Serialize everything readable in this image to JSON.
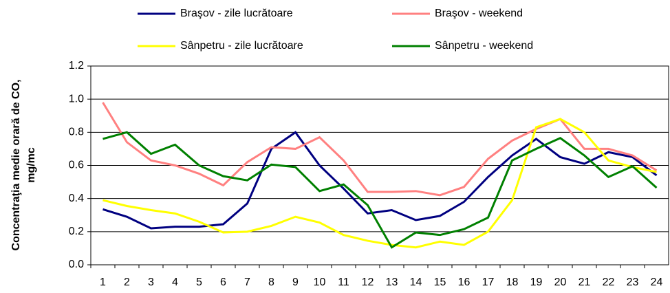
{
  "chart_data": {
    "type": "line",
    "y_label": [
      "Concentraţia medie orară de CO,",
      "mg/mc"
    ],
    "categories": [
      "1",
      "2",
      "3",
      "4",
      "5",
      "6",
      "7",
      "8",
      "9",
      "10",
      "11",
      "12",
      "13",
      "14",
      "15",
      "16",
      "17",
      "18",
      "19",
      "20",
      "21",
      "22",
      "23",
      "24"
    ],
    "series": [
      {
        "name": "Braşov - zile lucrătoare",
        "color": "#000080",
        "values": [
          0.335,
          0.29,
          0.22,
          0.23,
          0.23,
          0.245,
          0.37,
          0.7,
          0.8,
          0.6,
          0.46,
          0.31,
          0.33,
          0.27,
          0.295,
          0.38,
          0.53,
          0.66,
          0.76,
          0.65,
          0.61,
          0.68,
          0.65,
          0.54
        ]
      },
      {
        "name": "Braşov - weekend",
        "color": "#ff8080",
        "values": [
          0.98,
          0.74,
          0.63,
          0.6,
          0.55,
          0.48,
          0.62,
          0.71,
          0.7,
          0.77,
          0.63,
          0.44,
          0.44,
          0.445,
          0.42,
          0.47,
          0.64,
          0.75,
          0.82,
          0.88,
          0.7,
          0.7,
          0.66,
          0.57
        ]
      },
      {
        "name": "Sânpetru - zile lucrătoare",
        "color": "#ffff00",
        "values": [
          0.39,
          0.355,
          0.33,
          0.31,
          0.26,
          0.195,
          0.2,
          0.235,
          0.29,
          0.255,
          0.18,
          0.145,
          0.12,
          0.105,
          0.14,
          0.12,
          0.2,
          0.39,
          0.83,
          0.88,
          0.8,
          0.63,
          0.59,
          0.56
        ]
      },
      {
        "name": "Sânpetru - weekend",
        "color": "#008000",
        "values": [
          0.76,
          0.8,
          0.67,
          0.725,
          0.6,
          0.535,
          0.51,
          0.605,
          0.59,
          0.445,
          0.485,
          0.36,
          0.105,
          0.195,
          0.18,
          0.215,
          0.285,
          0.63,
          0.7,
          0.765,
          0.66,
          0.53,
          0.595,
          0.465
        ]
      }
    ],
    "ylim": [
      0,
      1.2
    ],
    "yticks": [
      {
        "value": 0,
        "label": "0.0"
      },
      0.2,
      0.4,
      0.6,
      0.8,
      {
        "value": 1,
        "label": "1.0"
      },
      1.2
    ],
    "grid": true
  }
}
